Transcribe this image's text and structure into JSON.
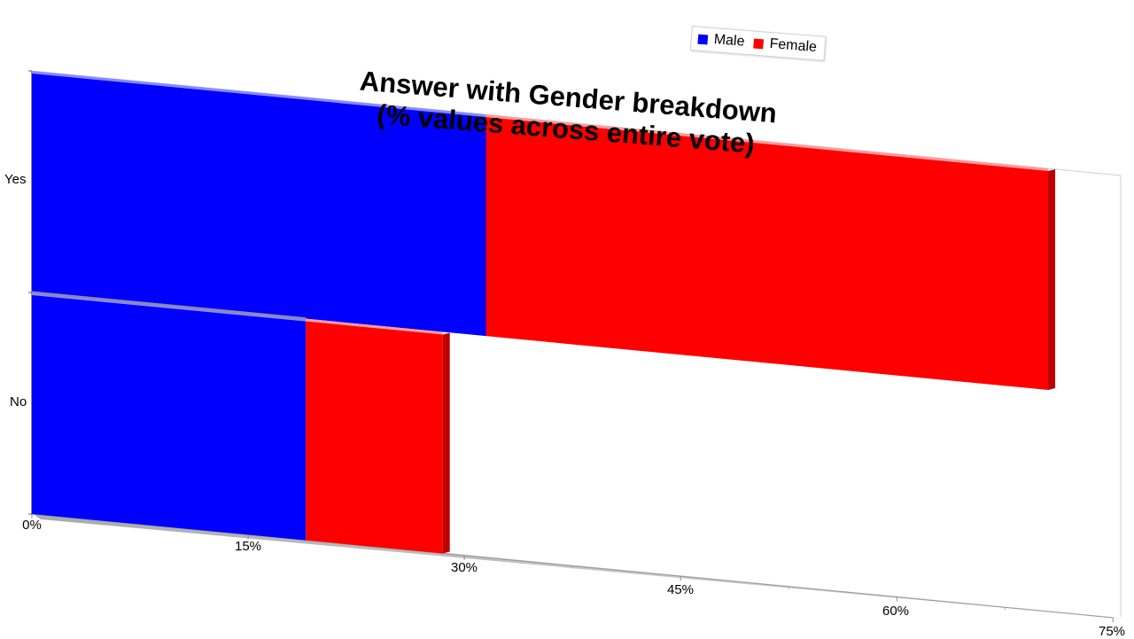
{
  "chart_data": {
    "type": "bar",
    "orientation": "horizontal",
    "stacked": true,
    "title": "Answer with Gender breakdown",
    "subtitle": "(% values across entire vote)",
    "categories": [
      "Yes",
      "No"
    ],
    "series": [
      {
        "name": "Male",
        "color": "#0000ff",
        "values": [
          31.5,
          19
        ]
      },
      {
        "name": "Female",
        "color": "#ff0000",
        "values": [
          39,
          9.5
        ]
      }
    ],
    "xlim": [
      0,
      75
    ],
    "x_ticks": [
      "0%",
      "15%",
      "30%",
      "45%",
      "60%",
      "75%"
    ],
    "legend_position": "top-right",
    "grid": false,
    "three_d": true
  }
}
